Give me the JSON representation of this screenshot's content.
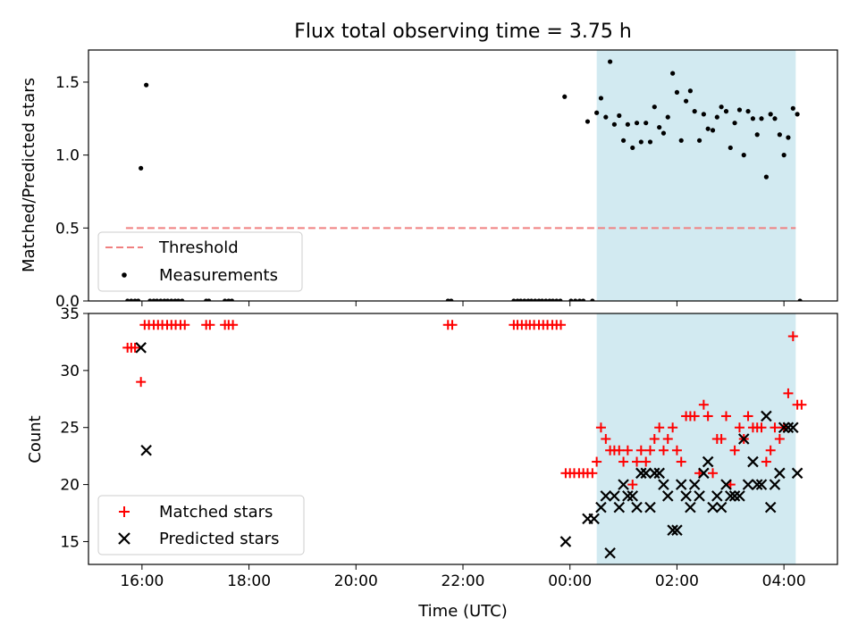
{
  "title": "Flux total observing time = 3.75 h",
  "xlabel": "Time (UTC)",
  "x_ticks": [
    {
      "h": 16,
      "label": "16:00"
    },
    {
      "h": 18,
      "label": "18:00"
    },
    {
      "h": 20,
      "label": "20:00"
    },
    {
      "h": 22,
      "label": "22:00"
    },
    {
      "h": 24,
      "label": "00:00"
    },
    {
      "h": 26,
      "label": "02:00"
    },
    {
      "h": 28,
      "label": "04:00"
    }
  ],
  "x_range_hours": [
    15.0,
    29.0
  ],
  "chart_data": [
    {
      "type": "scatter",
      "panel": "top",
      "ylabel": "Matched/Predicted stars",
      "ylim": [
        0,
        1.72
      ],
      "y_ticks": [
        {
          "v": 0.0,
          "label": "0.0"
        },
        {
          "v": 0.5,
          "label": "0.5"
        },
        {
          "v": 1.0,
          "label": "1.0"
        },
        {
          "v": 1.5,
          "label": "1.5"
        }
      ],
      "shaded_interval_hours": [
        24.5,
        28.22
      ],
      "shade_color": "#add8e6",
      "threshold": {
        "name": "Threshold",
        "value": 0.5,
        "x_range_hours": [
          15.7,
          28.22
        ],
        "color": "#f08080",
        "style": "dashed"
      },
      "legend": {
        "position": "lower-left",
        "entries": [
          "Threshold",
          "Measurements"
        ]
      },
      "series": [
        {
          "name": "Measurements",
          "marker": "dot",
          "color": "#000000",
          "points": [
            [
              15.73,
              0
            ],
            [
              15.8,
              0
            ],
            [
              15.87,
              0
            ],
            [
              15.93,
              0
            ],
            [
              15.98,
              0.91
            ],
            [
              16.08,
              1.48
            ],
            [
              16.15,
              0
            ],
            [
              16.22,
              0
            ],
            [
              16.28,
              0
            ],
            [
              16.35,
              0
            ],
            [
              16.42,
              0
            ],
            [
              16.48,
              0
            ],
            [
              16.55,
              0
            ],
            [
              16.62,
              0
            ],
            [
              16.68,
              0
            ],
            [
              16.75,
              0
            ],
            [
              17.2,
              0
            ],
            [
              17.25,
              0
            ],
            [
              17.55,
              0
            ],
            [
              17.62,
              0
            ],
            [
              17.68,
              0
            ],
            [
              21.72,
              0
            ],
            [
              21.78,
              0
            ],
            [
              22.95,
              0
            ],
            [
              23.02,
              0
            ],
            [
              23.08,
              0
            ],
            [
              23.15,
              0
            ],
            [
              23.22,
              0
            ],
            [
              23.28,
              0
            ],
            [
              23.35,
              0
            ],
            [
              23.42,
              0
            ],
            [
              23.48,
              0
            ],
            [
              23.55,
              0
            ],
            [
              23.62,
              0
            ],
            [
              23.68,
              0
            ],
            [
              23.75,
              0
            ],
            [
              23.82,
              0
            ],
            [
              23.9,
              1.4
            ],
            [
              24.02,
              0
            ],
            [
              24.1,
              0
            ],
            [
              24.18,
              0
            ],
            [
              24.25,
              0
            ],
            [
              24.42,
              0
            ],
            [
              24.33,
              1.23
            ],
            [
              24.5,
              1.29
            ],
            [
              24.58,
              1.39
            ],
            [
              24.67,
              1.26
            ],
            [
              24.75,
              1.64
            ],
            [
              24.83,
              1.21
            ],
            [
              24.92,
              1.27
            ],
            [
              25.0,
              1.1
            ],
            [
              25.08,
              1.21
            ],
            [
              25.17,
              1.05
            ],
            [
              25.25,
              1.22
            ],
            [
              25.33,
              1.09
            ],
            [
              25.42,
              1.22
            ],
            [
              25.5,
              1.09
            ],
            [
              25.58,
              1.33
            ],
            [
              25.67,
              1.19
            ],
            [
              25.75,
              1.15
            ],
            [
              25.83,
              1.26
            ],
            [
              25.92,
              1.56
            ],
            [
              26.0,
              1.43
            ],
            [
              26.08,
              1.1
            ],
            [
              26.17,
              1.37
            ],
            [
              26.25,
              1.44
            ],
            [
              26.33,
              1.3
            ],
            [
              26.42,
              1.1
            ],
            [
              26.5,
              1.28
            ],
            [
              26.58,
              1.18
            ],
            [
              26.67,
              1.17
            ],
            [
              26.75,
              1.26
            ],
            [
              26.83,
              1.33
            ],
            [
              26.92,
              1.3
            ],
            [
              27.0,
              1.05
            ],
            [
              27.08,
              1.22
            ],
            [
              27.17,
              1.31
            ],
            [
              27.25,
              1.0
            ],
            [
              27.33,
              1.3
            ],
            [
              27.42,
              1.25
            ],
            [
              27.5,
              1.14
            ],
            [
              27.58,
              1.25
            ],
            [
              27.67,
              0.85
            ],
            [
              27.75,
              1.28
            ],
            [
              27.83,
              1.25
            ],
            [
              27.92,
              1.14
            ],
            [
              28.0,
              1.0
            ],
            [
              28.08,
              1.12
            ],
            [
              28.17,
              1.32
            ],
            [
              28.25,
              1.28
            ],
            [
              28.3,
              0
            ]
          ]
        }
      ]
    },
    {
      "type": "scatter",
      "panel": "bottom",
      "ylabel": "Count",
      "ylim": [
        13,
        35
      ],
      "y_ticks": [
        {
          "v": 15,
          "label": "15"
        },
        {
          "v": 20,
          "label": "20"
        },
        {
          "v": 25,
          "label": "25"
        },
        {
          "v": 30,
          "label": "30"
        },
        {
          "v": 35,
          "label": "35"
        }
      ],
      "shaded_interval_hours": [
        24.5,
        28.22
      ],
      "legend": {
        "position": "lower-left",
        "entries": [
          "Matched stars",
          "Predicted stars"
        ]
      },
      "series": [
        {
          "name": "Matched stars",
          "marker": "plus",
          "color": "#ff0000",
          "points": [
            [
              15.73,
              32
            ],
            [
              15.8,
              32
            ],
            [
              15.87,
              32
            ],
            [
              15.98,
              29
            ],
            [
              16.05,
              34
            ],
            [
              16.13,
              34
            ],
            [
              16.22,
              34
            ],
            [
              16.3,
              34
            ],
            [
              16.38,
              34
            ],
            [
              16.47,
              34
            ],
            [
              16.55,
              34
            ],
            [
              16.63,
              34
            ],
            [
              16.72,
              34
            ],
            [
              16.8,
              34
            ],
            [
              17.2,
              34
            ],
            [
              17.27,
              34
            ],
            [
              17.55,
              34
            ],
            [
              17.62,
              34
            ],
            [
              17.7,
              34
            ],
            [
              21.72,
              34
            ],
            [
              21.8,
              34
            ],
            [
              22.95,
              34
            ],
            [
              23.02,
              34
            ],
            [
              23.1,
              34
            ],
            [
              23.18,
              34
            ],
            [
              23.25,
              34
            ],
            [
              23.33,
              34
            ],
            [
              23.42,
              34
            ],
            [
              23.5,
              34
            ],
            [
              23.58,
              34
            ],
            [
              23.67,
              34
            ],
            [
              23.75,
              34
            ],
            [
              23.83,
              34
            ],
            [
              23.92,
              21
            ],
            [
              24.0,
              21
            ],
            [
              24.08,
              21
            ],
            [
              24.17,
              21
            ],
            [
              24.25,
              21
            ],
            [
              24.33,
              21
            ],
            [
              24.42,
              21
            ],
            [
              24.5,
              22
            ],
            [
              24.58,
              25
            ],
            [
              24.67,
              24
            ],
            [
              24.75,
              23
            ],
            [
              24.83,
              23
            ],
            [
              24.92,
              23
            ],
            [
              25.0,
              22
            ],
            [
              25.08,
              23
            ],
            [
              25.17,
              20
            ],
            [
              25.25,
              22
            ],
            [
              25.33,
              23
            ],
            [
              25.42,
              22
            ],
            [
              25.5,
              23
            ],
            [
              25.58,
              24
            ],
            [
              25.67,
              25
            ],
            [
              25.75,
              23
            ],
            [
              25.83,
              24
            ],
            [
              25.92,
              25
            ],
            [
              26.0,
              23
            ],
            [
              26.08,
              22
            ],
            [
              26.17,
              26
            ],
            [
              26.25,
              26
            ],
            [
              26.33,
              26
            ],
            [
              26.42,
              21
            ],
            [
              26.5,
              27
            ],
            [
              26.58,
              26
            ],
            [
              26.67,
              21
            ],
            [
              26.75,
              24
            ],
            [
              26.83,
              24
            ],
            [
              26.92,
              26
            ],
            [
              27.0,
              20
            ],
            [
              27.08,
              23
            ],
            [
              27.17,
              25
            ],
            [
              27.25,
              24
            ],
            [
              27.33,
              26
            ],
            [
              27.42,
              25
            ],
            [
              27.5,
              25
            ],
            [
              27.58,
              25
            ],
            [
              27.67,
              22
            ],
            [
              27.75,
              23
            ],
            [
              27.83,
              25
            ],
            [
              27.92,
              24
            ],
            [
              28.0,
              25
            ],
            [
              28.08,
              28
            ],
            [
              28.17,
              33
            ],
            [
              28.25,
              27
            ],
            [
              28.33,
              27
            ]
          ]
        },
        {
          "name": "Predicted stars",
          "marker": "x",
          "color": "#000000",
          "points": [
            [
              15.98,
              32
            ],
            [
              16.08,
              23
            ],
            [
              23.92,
              15
            ],
            [
              24.33,
              17
            ],
            [
              24.45,
              17
            ],
            [
              24.58,
              18
            ],
            [
              24.67,
              19
            ],
            [
              24.75,
              14
            ],
            [
              24.83,
              19
            ],
            [
              24.92,
              18
            ],
            [
              25.0,
              20
            ],
            [
              25.08,
              19
            ],
            [
              25.17,
              19
            ],
            [
              25.25,
              18
            ],
            [
              25.33,
              21
            ],
            [
              25.42,
              21
            ],
            [
              25.5,
              18
            ],
            [
              25.58,
              21
            ],
            [
              25.67,
              21
            ],
            [
              25.75,
              20
            ],
            [
              25.83,
              19
            ],
            [
              25.92,
              16
            ],
            [
              26.0,
              16
            ],
            [
              26.08,
              20
            ],
            [
              26.17,
              19
            ],
            [
              26.25,
              18
            ],
            [
              26.33,
              20
            ],
            [
              26.42,
              19
            ],
            [
              26.5,
              21
            ],
            [
              26.58,
              22
            ],
            [
              26.67,
              18
            ],
            [
              26.75,
              19
            ],
            [
              26.83,
              18
            ],
            [
              26.92,
              20
            ],
            [
              27.0,
              19
            ],
            [
              27.08,
              19
            ],
            [
              27.17,
              19
            ],
            [
              27.25,
              24
            ],
            [
              27.33,
              20
            ],
            [
              27.42,
              22
            ],
            [
              27.5,
              20
            ],
            [
              27.58,
              20
            ],
            [
              27.67,
              26
            ],
            [
              27.75,
              18
            ],
            [
              27.83,
              20
            ],
            [
              27.92,
              21
            ],
            [
              28.0,
              25
            ],
            [
              28.08,
              25
            ],
            [
              28.17,
              25
            ],
            [
              28.25,
              21
            ]
          ]
        }
      ]
    }
  ]
}
